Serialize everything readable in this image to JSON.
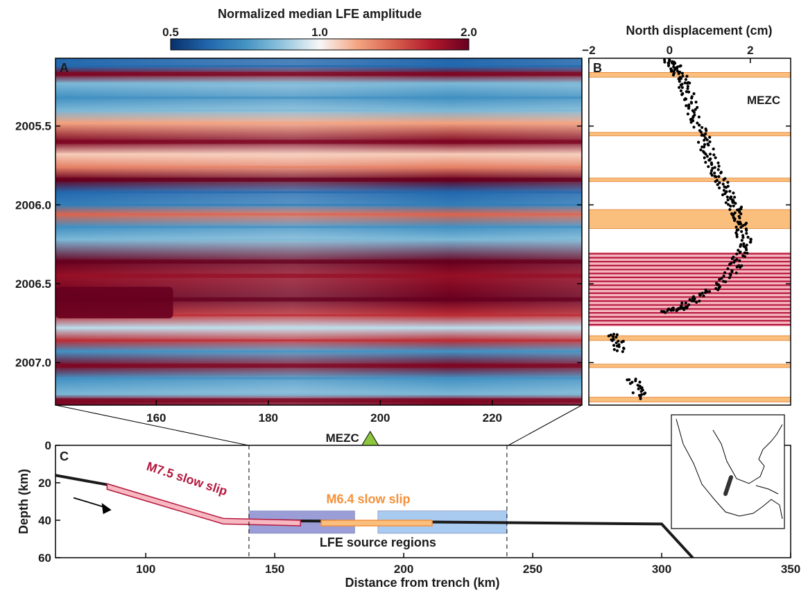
{
  "colorbar": {
    "title": "Normalized median LFE amplitude",
    "ticks": [
      "0.5",
      "1.0",
      "2.0"
    ],
    "stops": [
      "#08306b",
      "#2166ac",
      "#4393c3",
      "#92c5de",
      "#f7f7f7",
      "#f4a582",
      "#d6604d",
      "#b2182b",
      "#67001f"
    ]
  },
  "chart_data": [
    {
      "panel": "A",
      "type": "heatmap",
      "xlabel": "",
      "ylabel": "",
      "xlim": [
        142,
        236
      ],
      "ylim": [
        2005.07,
        2007.27
      ],
      "x_ticks": [
        "160",
        "180",
        "200",
        "220"
      ],
      "y_ticks": [
        "2005.5",
        "2006.0",
        "2006.5",
        "2007.0"
      ],
      "bands": [
        {
          "t": 2005.12,
          "v": 0.6
        },
        {
          "t": 2005.17,
          "v": 1.9
        },
        {
          "t": 2005.23,
          "v": 0.8
        },
        {
          "t": 2005.32,
          "v": 0.7
        },
        {
          "t": 2005.4,
          "v": 0.8
        },
        {
          "t": 2005.48,
          "v": 1.2
        },
        {
          "t": 2005.6,
          "v": 1.9
        },
        {
          "t": 2005.68,
          "v": 1.1
        },
        {
          "t": 2005.76,
          "v": 1.3
        },
        {
          "t": 2005.84,
          "v": 2.0
        },
        {
          "t": 2005.92,
          "v": 0.6
        },
        {
          "t": 2006.0,
          "v": 0.65
        },
        {
          "t": 2006.06,
          "v": 1.4
        },
        {
          "t": 2006.14,
          "v": 0.7
        },
        {
          "t": 2006.22,
          "v": 0.8
        },
        {
          "t": 2006.36,
          "v": 2.0
        },
        {
          "t": 2006.45,
          "v": 1.8
        },
        {
          "t": 2006.6,
          "v": 2.0
        },
        {
          "t": 2006.7,
          "v": 1.6
        },
        {
          "t": 2006.78,
          "v": 0.9
        },
        {
          "t": 2006.86,
          "v": 1.6
        },
        {
          "t": 2006.93,
          "v": 0.7
        },
        {
          "t": 2007.02,
          "v": 1.9
        },
        {
          "t": 2007.1,
          "v": 0.7
        },
        {
          "t": 2007.2,
          "v": 0.8
        },
        {
          "t": 2007.24,
          "v": 1.9
        }
      ]
    },
    {
      "panel": "B",
      "type": "scatter",
      "title": "North displacement (cm)",
      "xlim": [
        -2,
        3
      ],
      "ylim": [
        2005.07,
        2007.27
      ],
      "x_ticks": [
        "−2",
        "0",
        "2"
      ],
      "station_label": "MEZC",
      "series": [
        {
          "segment": "trend",
          "points": [
            [
              0.0,
              2005.08
            ],
            [
              0.2,
              2005.15
            ],
            [
              0.4,
              2005.25
            ],
            [
              0.6,
              2005.4
            ],
            [
              0.8,
              2005.55
            ],
            [
              1.0,
              2005.7
            ],
            [
              1.2,
              2005.82
            ],
            [
              1.5,
              2005.95
            ],
            [
              1.7,
              2006.05
            ],
            [
              1.8,
              2006.15
            ],
            [
              1.9,
              2006.27
            ],
            [
              1.6,
              2006.4
            ],
            [
              1.0,
              2006.55
            ],
            [
              0.3,
              2006.65
            ],
            [
              -0.1,
              2006.68
            ]
          ]
        },
        {
          "segment": "offset-1",
          "points": [
            [
              -1.4,
              2006.82
            ],
            [
              -1.2,
              2006.93
            ]
          ]
        },
        {
          "segment": "offset-2",
          "points": [
            [
              -0.9,
              2007.1
            ],
            [
              -0.7,
              2007.23
            ]
          ]
        }
      ],
      "slow_slip_bands": [
        {
          "t0": 2005.16,
          "t1": 2005.19,
          "color": "#fbbf7d"
        },
        {
          "t0": 2005.54,
          "t1": 2005.56,
          "color": "#fbbf7d"
        },
        {
          "t0": 2005.83,
          "t1": 2005.85,
          "color": "#fbbf7d"
        },
        {
          "t0": 2006.03,
          "t1": 2006.15,
          "color": "#fbbf7d"
        },
        {
          "t0": 2006.83,
          "t1": 2006.86,
          "color": "#fbbf7d"
        },
        {
          "t0": 2007.01,
          "t1": 2007.03,
          "color": "#fbbf7d"
        },
        {
          "t0": 2007.22,
          "t1": 2007.25,
          "color": "#fbbf7d"
        }
      ],
      "large_event_band": {
        "t0": 2006.3,
        "t1": 2006.77,
        "color": "#f6b6bf",
        "stripe": "#b5183e"
      }
    },
    {
      "panel": "C",
      "type": "line",
      "xlabel": "Distance from trench (km)",
      "ylabel": "Depth (km)",
      "xlim": [
        65,
        350
      ],
      "ylim": [
        0,
        60
      ],
      "x_ticks": [
        "100",
        "150",
        "200",
        "250",
        "300",
        "350"
      ],
      "y_ticks": [
        "0",
        "20",
        "40",
        "60"
      ],
      "slab": [
        [
          65,
          16
        ],
        [
          85,
          21
        ],
        [
          130,
          40
        ],
        [
          300,
          42
        ],
        [
          312,
          60
        ]
      ],
      "m75_slow_slip": {
        "label": "M7.5 slow slip",
        "path": [
          [
            85,
            22
          ],
          [
            130,
            40.5
          ],
          [
            160,
            41.5
          ]
        ],
        "color": "#b5183e"
      },
      "m64_slow_slip": {
        "label": "M6.4 slow slip",
        "x0": 168,
        "x1": 211,
        "depth": 41.5,
        "color": "#f5903a"
      },
      "lfe_regions": {
        "label": "LFE source regions",
        "boxes": [
          {
            "x0": 140,
            "x1": 181,
            "d0": 35,
            "d1": 47,
            "color": "#8a8ed0"
          },
          {
            "x0": 190,
            "x1": 240,
            "d0": 35,
            "d1": 47,
            "color": "#9cc3ee"
          }
        ]
      },
      "dashed_x": [
        140,
        240
      ],
      "station": {
        "label": "MEZC",
        "x": 187
      }
    }
  ],
  "panels": {
    "a": "A",
    "b": "B",
    "c": "C"
  }
}
